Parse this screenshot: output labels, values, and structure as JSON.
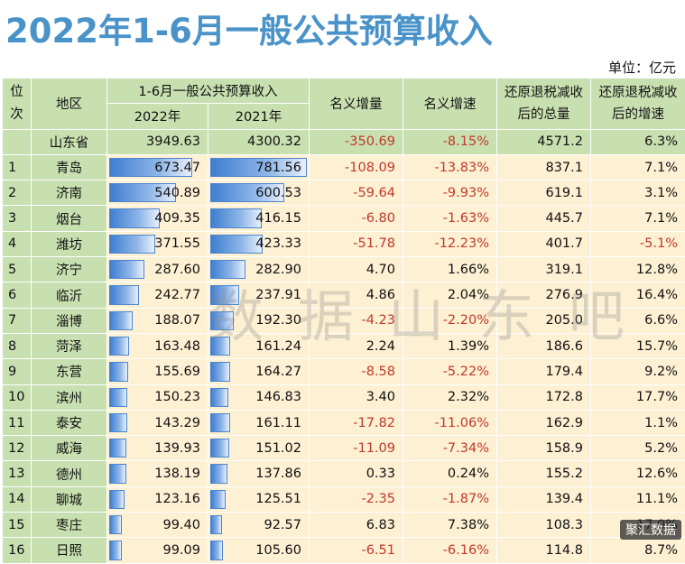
{
  "title": "2022年1-6月一般公共预算收入",
  "unit": "单位：亿元",
  "headers": {
    "rank": "位次",
    "region": "地区",
    "group": "1-6月一般公共预算收入",
    "y2022": "2022年",
    "y2021": "2021年",
    "increase": "名义增量",
    "growth": "名义增速",
    "restored_total": "还原退税减收后的总量",
    "restored_growth": "还原退税减收后的增速"
  },
  "province": {
    "region": "山东省",
    "y2022": "3949.63",
    "y2021": "4300.32",
    "increase": "-350.69",
    "growth": "-8.15%",
    "restored_total": "4571.2",
    "restored_growth": "6.3%"
  },
  "rows": [
    {
      "rank": "1",
      "region": "青岛",
      "y2022": "673.47",
      "y2021": "781.56",
      "increase": "-108.09",
      "growth": "-13.83%",
      "restored_total": "837.1",
      "restored_growth": "7.1%"
    },
    {
      "rank": "2",
      "region": "济南",
      "y2022": "540.89",
      "y2021": "600.53",
      "increase": "-59.64",
      "growth": "-9.93%",
      "restored_total": "619.1",
      "restored_growth": "3.1%"
    },
    {
      "rank": "3",
      "region": "烟台",
      "y2022": "409.35",
      "y2021": "416.15",
      "increase": "-6.80",
      "growth": "-1.63%",
      "restored_total": "445.7",
      "restored_growth": "7.1%"
    },
    {
      "rank": "4",
      "region": "潍坊",
      "y2022": "371.55",
      "y2021": "423.33",
      "increase": "-51.78",
      "growth": "-12.23%",
      "restored_total": "401.7",
      "restored_growth": "-5.1%"
    },
    {
      "rank": "5",
      "region": "济宁",
      "y2022": "287.60",
      "y2021": "282.90",
      "increase": "4.70",
      "growth": "1.66%",
      "restored_total": "319.1",
      "restored_growth": "12.8%"
    },
    {
      "rank": "6",
      "region": "临沂",
      "y2022": "242.77",
      "y2021": "237.91",
      "increase": "4.86",
      "growth": "2.04%",
      "restored_total": "276.9",
      "restored_growth": "16.4%"
    },
    {
      "rank": "7",
      "region": "淄博",
      "y2022": "188.07",
      "y2021": "192.30",
      "increase": "-4.23",
      "growth": "-2.20%",
      "restored_total": "205.0",
      "restored_growth": "6.6%"
    },
    {
      "rank": "8",
      "region": "菏泽",
      "y2022": "163.48",
      "y2021": "161.24",
      "increase": "2.24",
      "growth": "1.39%",
      "restored_total": "186.6",
      "restored_growth": "15.7%"
    },
    {
      "rank": "9",
      "region": "东营",
      "y2022": "155.69",
      "y2021": "164.27",
      "increase": "-8.58",
      "growth": "-5.22%",
      "restored_total": "179.4",
      "restored_growth": "9.2%"
    },
    {
      "rank": "10",
      "region": "滨州",
      "y2022": "150.23",
      "y2021": "146.83",
      "increase": "3.40",
      "growth": "2.32%",
      "restored_total": "172.8",
      "restored_growth": "17.7%"
    },
    {
      "rank": "11",
      "region": "泰安",
      "y2022": "143.29",
      "y2021": "161.11",
      "increase": "-17.82",
      "growth": "-11.06%",
      "restored_total": "162.9",
      "restored_growth": "1.1%"
    },
    {
      "rank": "12",
      "region": "威海",
      "y2022": "139.93",
      "y2021": "151.02",
      "increase": "-11.09",
      "growth": "-7.34%",
      "restored_total": "158.9",
      "restored_growth": "5.2%"
    },
    {
      "rank": "13",
      "region": "德州",
      "y2022": "138.19",
      "y2021": "137.86",
      "increase": "0.33",
      "growth": "0.24%",
      "restored_total": "155.2",
      "restored_growth": "12.6%"
    },
    {
      "rank": "14",
      "region": "聊城",
      "y2022": "123.16",
      "y2021": "125.51",
      "increase": "-2.35",
      "growth": "-1.87%",
      "restored_total": "139.4",
      "restored_growth": "11.1%"
    },
    {
      "rank": "15",
      "region": "枣庄",
      "y2022": "99.40",
      "y2021": "92.57",
      "increase": "6.83",
      "growth": "7.38%",
      "restored_total": "108.3",
      "restored_growth": "17.0%"
    },
    {
      "rank": "16",
      "region": "日照",
      "y2022": "99.09",
      "y2021": "105.60",
      "increase": "-6.51",
      "growth": "-6.16%",
      "restored_total": "114.8",
      "restored_growth": "8.7%"
    }
  ],
  "bar_max": 781.56,
  "watermark": "数据山东吧",
  "badge": "聚汇数据",
  "colors": {
    "title": "#4a93c9",
    "header_bg": "#c8dfb0",
    "cell_bg": "#fdf0d3",
    "negative": "#c0392b",
    "bar": "#3f7ed0"
  }
}
